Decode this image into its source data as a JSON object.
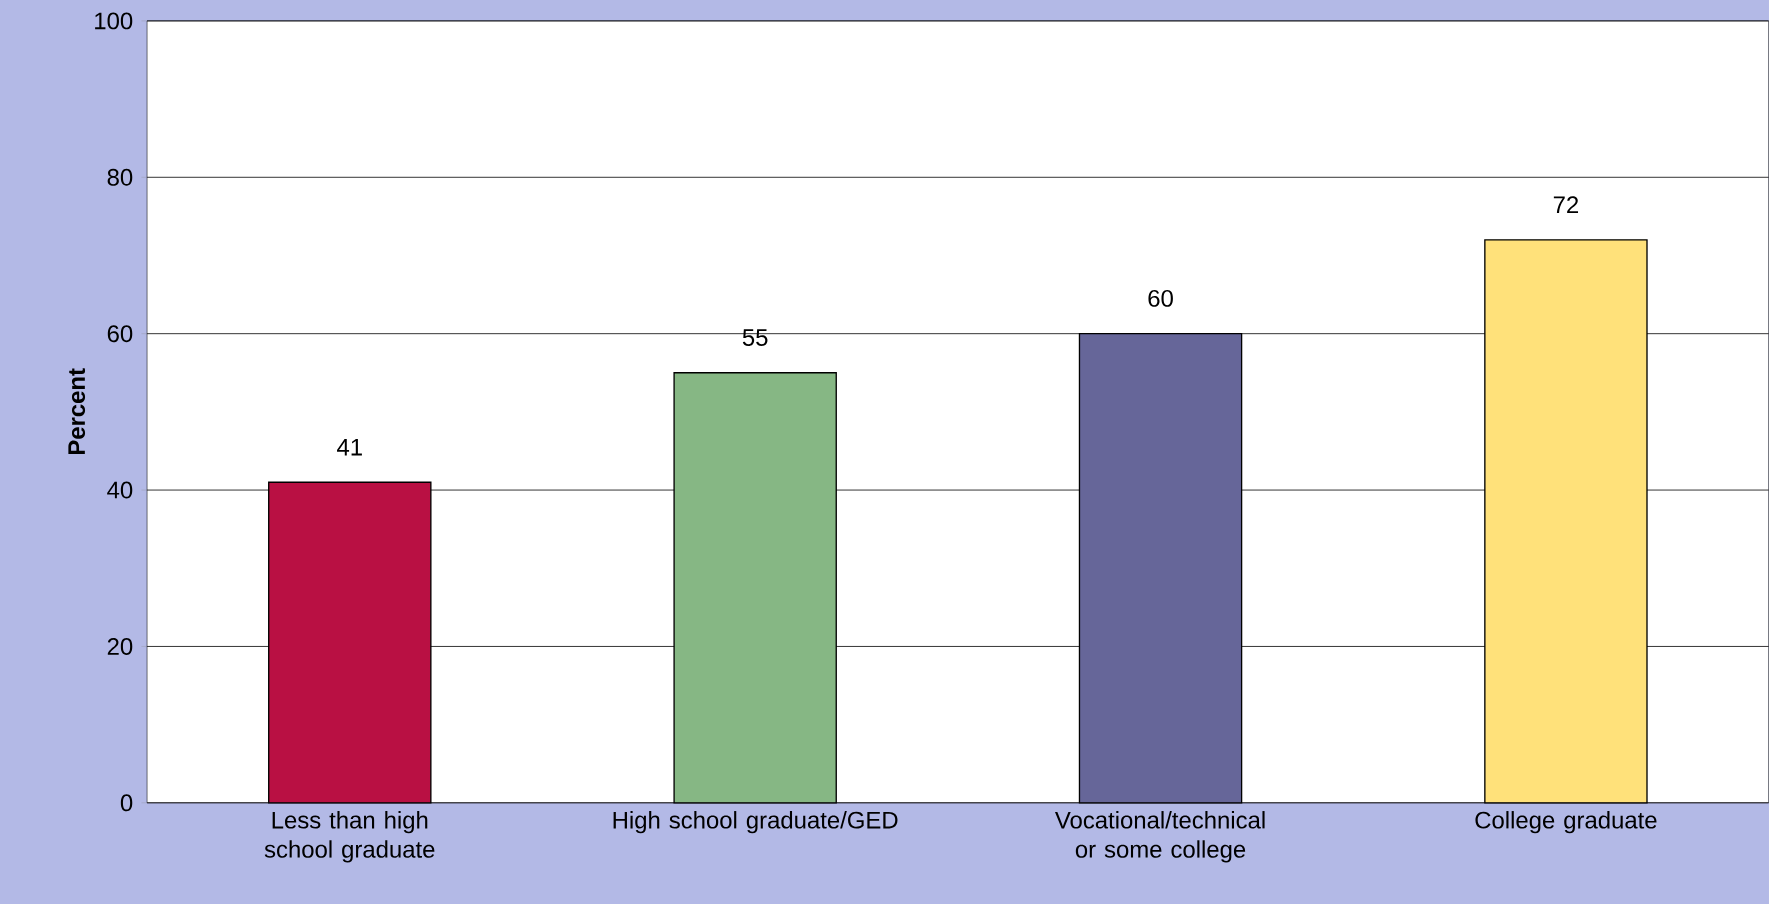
{
  "chart_data": {
    "type": "bar",
    "ylabel": "Percent",
    "categories": [
      "Less than high school graduate",
      "High school graduate/GED",
      "Vocational/technical or some college",
      "College graduate"
    ],
    "values": [
      41,
      55,
      60,
      72
    ],
    "colors": [
      "#b91043",
      "#86b784",
      "#666699",
      "#ffe17a"
    ],
    "ylim": [
      0,
      100
    ],
    "yticks": [
      0,
      20,
      40,
      60,
      80,
      100
    ],
    "grid": "y",
    "data_labels": true
  }
}
